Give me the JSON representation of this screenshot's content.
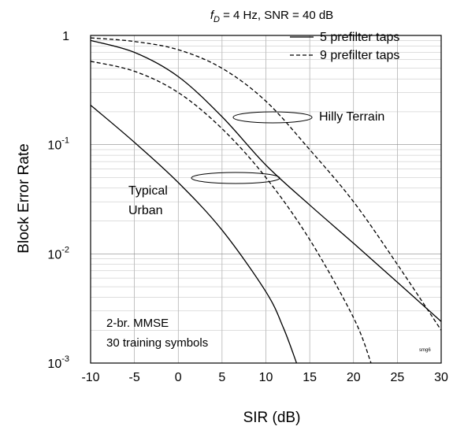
{
  "chart_data": {
    "type": "line",
    "title_parts": {
      "f": "f",
      "sub": "D",
      "rest": " = 4 Hz, SNR = 40 dB"
    },
    "xlabel": "SIR (dB)",
    "ylabel": "Block Error Rate",
    "xlim": [
      -10,
      30
    ],
    "ylim": [
      0.001,
      1
    ],
    "yscale": "log",
    "grid": true,
    "x_ticks": [
      -10,
      -5,
      0,
      5,
      10,
      15,
      20,
      25,
      30
    ],
    "x_tick_labels": [
      "-10",
      "-5",
      "0",
      "5",
      "10",
      "15",
      "20",
      "25",
      "30"
    ],
    "y_ticks": [
      {
        "value": 1,
        "base": "1",
        "exp": ""
      },
      {
        "value": 0.1,
        "base": "10",
        "exp": "-1"
      },
      {
        "value": 0.01,
        "base": "10",
        "exp": "-2"
      },
      {
        "value": 0.001,
        "base": "10",
        "exp": "-3"
      }
    ],
    "legend": {
      "position": "top-right",
      "entries": [
        {
          "label": "5 prefilter taps",
          "style": "solid"
        },
        {
          "label": "9 prefilter taps",
          "style": "dashed"
        }
      ]
    },
    "series": [
      {
        "name": "Hilly Terrain, 5 prefilter taps",
        "style": "solid",
        "x": [
          -10,
          -5,
          0,
          5,
          10,
          15,
          20,
          25,
          30
        ],
        "y": [
          0.9,
          0.7,
          0.42,
          0.18,
          0.065,
          0.028,
          0.0125,
          0.0055,
          0.0024
        ]
      },
      {
        "name": "Hilly Terrain, 9 prefilter taps",
        "style": "dashed",
        "x": [
          -10,
          -5,
          0,
          5,
          10,
          15,
          20,
          25,
          30
        ],
        "y": [
          0.95,
          0.88,
          0.74,
          0.5,
          0.25,
          0.09,
          0.03,
          0.008,
          0.002
        ]
      },
      {
        "name": "Typical Urban, 5 prefilter taps",
        "style": "solid",
        "x": [
          -10,
          -5,
          0,
          5,
          10,
          12,
          13.5
        ],
        "y": [
          0.23,
          0.105,
          0.045,
          0.0165,
          0.0045,
          0.0021,
          0.001
        ]
      },
      {
        "name": "Typical Urban, 9 prefilter taps",
        "style": "dashed",
        "x": [
          -10,
          -5,
          0,
          5,
          10,
          15,
          20,
          22
        ],
        "y": [
          0.58,
          0.47,
          0.3,
          0.14,
          0.05,
          0.0135,
          0.0026,
          0.001
        ]
      }
    ],
    "annotations": [
      {
        "text": "Hilly Terrain"
      },
      {
        "text": "Typical\nUrban"
      },
      {
        "text": "2-br. MMSE\n30 training symbols"
      },
      {
        "text": "smg6"
      }
    ]
  }
}
